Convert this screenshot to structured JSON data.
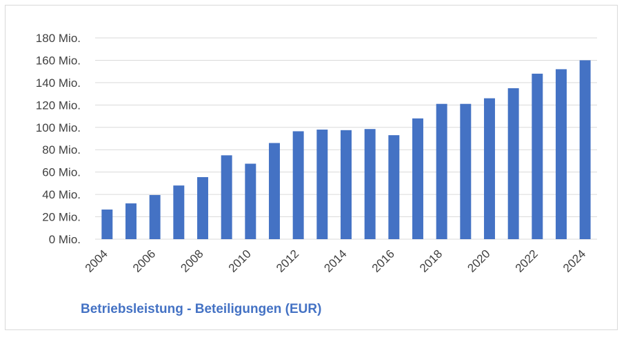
{
  "chart_data": {
    "type": "bar",
    "title": "Betriebsleistung - Beteiligungen (EUR)",
    "xlabel": "",
    "ylabel": "",
    "categories": [
      "2004",
      "2005",
      "2006",
      "2007",
      "2008",
      "2009",
      "2010",
      "2011",
      "2012",
      "2013",
      "2014",
      "2015",
      "2016",
      "2017",
      "2018",
      "2019",
      "2020",
      "2021",
      "2022",
      "2023",
      "2024"
    ],
    "x_tick_labels": [
      "2004",
      "2006",
      "2008",
      "2010",
      "2012",
      "2014",
      "2016",
      "2018",
      "2020",
      "2022",
      "2024"
    ],
    "values": [
      26.5,
      32,
      39.5,
      48,
      55.5,
      75,
      67.5,
      86,
      96.5,
      98,
      97.5,
      98.5,
      93,
      108,
      121,
      121,
      126,
      135,
      148,
      152,
      160
    ],
    "ylim": [
      0,
      180
    ],
    "y_ticks": [
      0,
      20,
      40,
      60,
      80,
      100,
      120,
      140,
      160,
      180
    ],
    "y_tick_labels": [
      "0 Mio.",
      "20 Mio.",
      "40 Mio.",
      "60 Mio.",
      "80 Mio.",
      "100 Mio.",
      "120 Mio.",
      "140 Mio.",
      "160 Mio.",
      "180 Mio."
    ],
    "grid": true,
    "legend": "none",
    "bar_color": "#4472c4",
    "grid_color": "#d9d9d9"
  }
}
